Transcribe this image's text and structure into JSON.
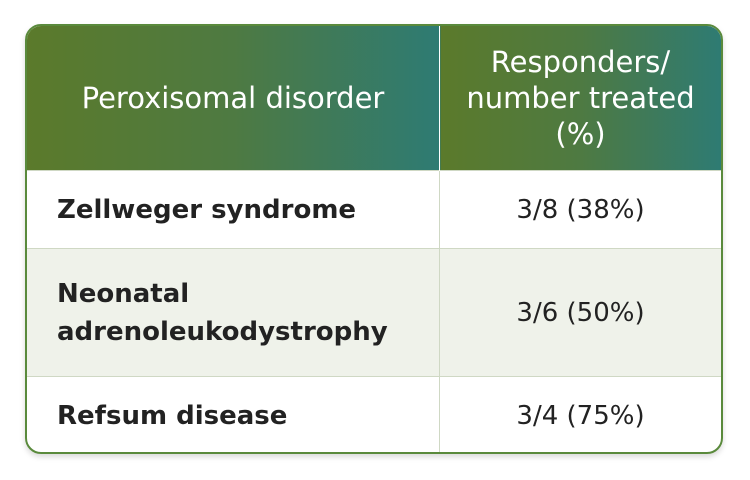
{
  "table": {
    "header": [
      "Peroxisomal disorder",
      "Responders/ number treated (%)"
    ],
    "rows": [
      [
        "Zellweger syndrome",
        "3/8 (38%)"
      ],
      [
        "Neonatal adrenoleukodystrophy",
        "3/6 (50%)"
      ],
      [
        "Refsum disease",
        "3/4 (75%)"
      ]
    ]
  }
}
